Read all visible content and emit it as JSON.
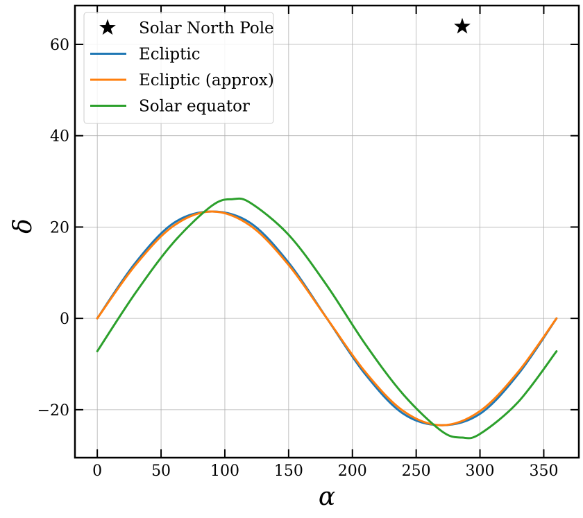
{
  "chart_data": {
    "type": "line",
    "title": "",
    "xlabel": "α",
    "ylabel": "δ",
    "xlim": [
      -17.5,
      377.5
    ],
    "ylim": [
      -30.5,
      68.5
    ],
    "xticks": [
      0,
      50,
      100,
      150,
      200,
      250,
      300,
      350
    ],
    "yticks": [
      -20,
      0,
      20,
      40,
      60
    ],
    "xtick_labels": [
      "0",
      "50",
      "100",
      "150",
      "200",
      "250",
      "300",
      "350"
    ],
    "ytick_labels": [
      "−20",
      "0",
      "20",
      "40",
      "60"
    ],
    "grid": true,
    "legend_position": "top-left",
    "points": [
      {
        "name": "Solar North Pole",
        "marker": "star",
        "color": "#000000",
        "x": 286.1,
        "y": 63.9
      }
    ],
    "series": [
      {
        "name": "Ecliptic",
        "color": "#1f77b4",
        "x": [
          0,
          30,
          60,
          90,
          120,
          150,
          180,
          210,
          240,
          270,
          300,
          330,
          360
        ],
        "y": [
          0.0,
          12.2,
          20.9,
          23.4,
          20.9,
          12.2,
          0.0,
          -12.2,
          -20.9,
          -23.4,
          -20.9,
          -12.2,
          0.0
        ]
      },
      {
        "name": "Ecliptic (approx)",
        "color": "#ff7f0e",
        "x": [
          0,
          30,
          60,
          90,
          120,
          150,
          180,
          210,
          240,
          270,
          300,
          330,
          360
        ],
        "y": [
          0.0,
          11.7,
          20.3,
          23.4,
          20.3,
          11.7,
          0.0,
          -11.7,
          -20.3,
          -23.4,
          -20.3,
          -11.7,
          0.0
        ]
      },
      {
        "name": "Solar equator",
        "color": "#2ca02c",
        "x": [
          0,
          30,
          60,
          90,
          106,
          120,
          150,
          180,
          210,
          240,
          270,
          286,
          300,
          330,
          360
        ],
        "y": [
          -7.2,
          5.6,
          16.7,
          24.7,
          26.1,
          25.3,
          18.3,
          7.2,
          -5.6,
          -16.7,
          -24.7,
          -26.1,
          -25.3,
          -18.3,
          -7.2
        ]
      }
    ]
  }
}
